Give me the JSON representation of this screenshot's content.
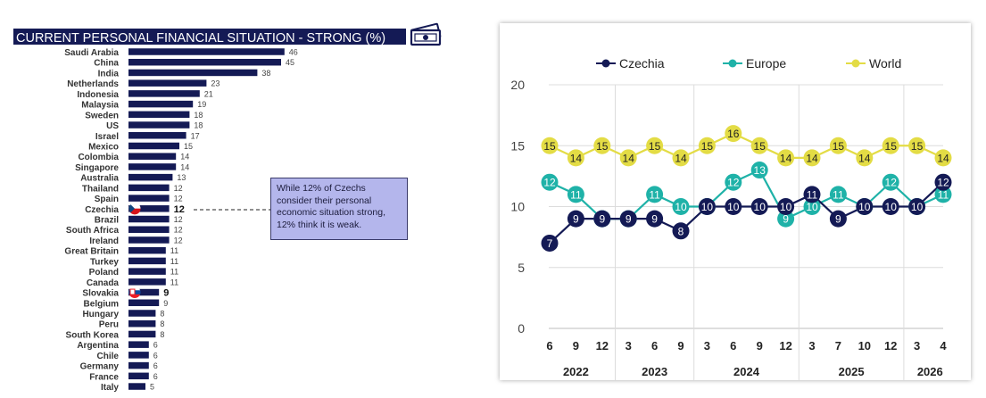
{
  "left_chart": {
    "title": "CURRENT PERSONAL FINANCIAL SITUATION - STRONG (%)",
    "title_icon": "money-bills-icon",
    "callout_text": "While 12% of Czechs consider their personal economic situation strong, 12% think it is weak.",
    "highlighted": {
      "Czechia": "czech-flag-icon",
      "Slovakia": "slovak-flag-icon"
    }
  },
  "right_chart": {
    "legend": [
      "Czechia",
      "Europe",
      "World"
    ],
    "month_labels": [
      "6",
      "9",
      "12",
      "3",
      "6",
      "9",
      "3",
      "6",
      "9",
      "12",
      "3",
      "7",
      "10",
      "12",
      "3",
      "4"
    ],
    "year_labels": [
      "2022",
      "2023",
      "2024",
      "2025",
      "2026"
    ],
    "y_ticks": [
      "0",
      "5",
      "10",
      "15",
      "20"
    ]
  },
  "colors": {
    "bar": "#141a55",
    "czechia": "#141a55",
    "europe": "#1fb2a8",
    "world": "#e3dc45",
    "callout_bg": "#b4b6ec"
  },
  "chart_data": [
    {
      "type": "bar",
      "orientation": "horizontal",
      "title": "CURRENT PERSONAL FINANCIAL SITUATION - STRONG (%)",
      "categories": [
        "Saudi Arabia",
        "China",
        "India",
        "Netherlands",
        "Indonesia",
        "Malaysia",
        "Sweden",
        "US",
        "Israel",
        "Mexico",
        "Colombia",
        "Singapore",
        "Australia",
        "Thailand",
        "Spain",
        "Czechia",
        "Brazil",
        "South Africa",
        "Ireland",
        "Great Britain",
        "Turkey",
        "Poland",
        "Canada",
        "Slovakia",
        "Belgium",
        "Hungary",
        "Peru",
        "South Korea",
        "Argentina",
        "Chile",
        "Germany",
        "France",
        "Italy"
      ],
      "values": [
        46,
        45,
        38,
        23,
        21,
        19,
        18,
        18,
        17,
        15,
        14,
        14,
        13,
        12,
        12,
        12,
        12,
        12,
        12,
        11,
        11,
        11,
        11,
        9,
        9,
        8,
        8,
        8,
        6,
        6,
        6,
        6,
        5
      ],
      "xlim": [
        0,
        50
      ]
    },
    {
      "type": "line",
      "x": [
        "6",
        "9",
        "12",
        "3",
        "6",
        "9",
        "3",
        "6",
        "9",
        "12",
        "3",
        "7",
        "10",
        "12",
        "3",
        "4"
      ],
      "x_groups": [
        {
          "label": "2022",
          "count": 3
        },
        {
          "label": "2023",
          "count": 3
        },
        {
          "label": "2024",
          "count": 4
        },
        {
          "label": "2025",
          "count": 4
        },
        {
          "label": "2026",
          "count": 2
        }
      ],
      "series": [
        {
          "name": "Czechia",
          "values": [
            7,
            9,
            9,
            9,
            9,
            8,
            10,
            10,
            10,
            10,
            11,
            9,
            10,
            10,
            10,
            12
          ]
        },
        {
          "name": "Europe",
          "values": [
            12,
            11,
            9,
            9,
            11,
            10,
            10,
            12,
            13,
            9,
            10,
            11,
            10,
            12,
            10,
            11
          ]
        },
        {
          "name": "World",
          "values": [
            15,
            14,
            15,
            14,
            15,
            14,
            15,
            16,
            15,
            14,
            14,
            15,
            14,
            15,
            15,
            14
          ]
        }
      ],
      "ylim": [
        0,
        20
      ],
      "yticks": [
        0,
        5,
        10,
        15,
        20
      ],
      "grid": true,
      "legend_position": "top"
    }
  ]
}
